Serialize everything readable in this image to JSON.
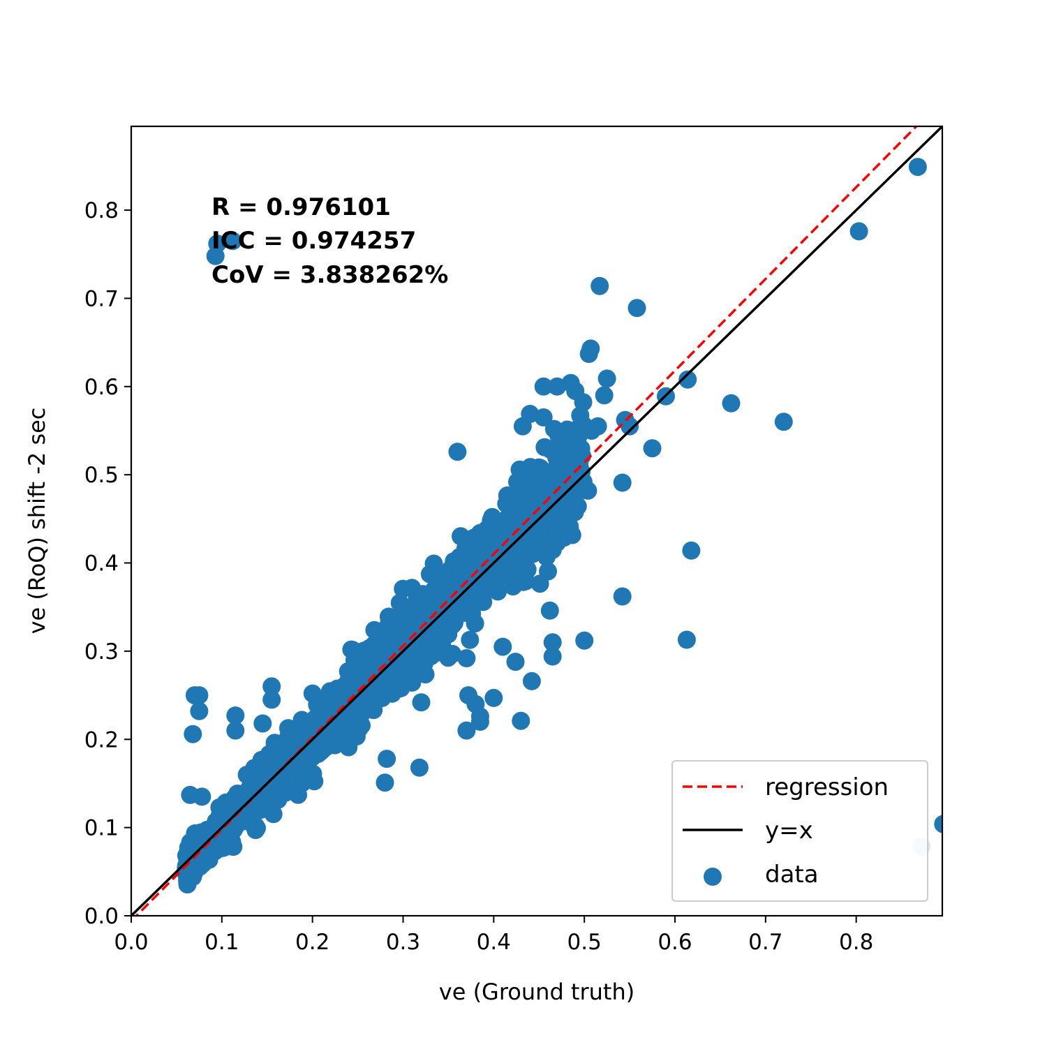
{
  "chart_data": {
    "type": "scatter",
    "xlabel": "ve (Ground truth)",
    "ylabel": "ve (RoQ) shift -2 sec",
    "xlim": [
      0,
      0.895
    ],
    "ylim": [
      0,
      0.895
    ],
    "x_ticks": [
      "0.0",
      "0.1",
      "0.2",
      "0.3",
      "0.4",
      "0.5",
      "0.6",
      "0.7",
      "0.8"
    ],
    "y_ticks": [
      "0.0",
      "0.1",
      "0.2",
      "0.3",
      "0.4",
      "0.5",
      "0.6",
      "0.7",
      "0.8"
    ],
    "grid": false,
    "annotations": [
      "R = 0.976101",
      "ICC = 0.974257",
      "CoV = 3.838262%"
    ],
    "legend": {
      "placement": "lower-right",
      "entries": [
        "regression",
        "y=x",
        "data"
      ]
    },
    "regression": {
      "slope": 1.04,
      "intercept": -0.006,
      "color": "#ff0000",
      "style": "dashed"
    },
    "identity_line": {
      "slope": 1,
      "intercept": 0,
      "color": "#000000"
    },
    "series": [
      {
        "name": "data",
        "color": "#1f77b4",
        "cluster": {
          "count": 1400,
          "x_range": [
            0.06,
            0.5
          ],
          "relation": "y ≈ 1.04x - 0.006 with spread increasing with x"
        },
        "points": [
          [
            0.07,
            0.25
          ],
          [
            0.075,
            0.25
          ],
          [
            0.075,
            0.232
          ],
          [
            0.068,
            0.206
          ],
          [
            0.065,
            0.137
          ],
          [
            0.078,
            0.135
          ],
          [
            0.115,
            0.227
          ],
          [
            0.115,
            0.21
          ],
          [
            0.145,
            0.218
          ],
          [
            0.155,
            0.26
          ],
          [
            0.155,
            0.245
          ],
          [
            0.095,
            0.762
          ],
          [
            0.112,
            0.765
          ],
          [
            0.093,
            0.748
          ],
          [
            0.517,
            0.714
          ],
          [
            0.558,
            0.689
          ],
          [
            0.507,
            0.643
          ],
          [
            0.505,
            0.637
          ],
          [
            0.525,
            0.609
          ],
          [
            0.522,
            0.59
          ],
          [
            0.455,
            0.6
          ],
          [
            0.47,
            0.6
          ],
          [
            0.485,
            0.604
          ],
          [
            0.49,
            0.595
          ],
          [
            0.44,
            0.569
          ],
          [
            0.432,
            0.555
          ],
          [
            0.455,
            0.565
          ],
          [
            0.36,
            0.526
          ],
          [
            0.545,
            0.562
          ],
          [
            0.55,
            0.555
          ],
          [
            0.515,
            0.555
          ],
          [
            0.508,
            0.55
          ],
          [
            0.575,
            0.53
          ],
          [
            0.59,
            0.589
          ],
          [
            0.614,
            0.608
          ],
          [
            0.662,
            0.581
          ],
          [
            0.72,
            0.56
          ],
          [
            0.868,
            0.849
          ],
          [
            0.803,
            0.776
          ],
          [
            0.542,
            0.491
          ],
          [
            0.504,
            0.482
          ],
          [
            0.618,
            0.414
          ],
          [
            0.542,
            0.362
          ],
          [
            0.5,
            0.312
          ],
          [
            0.462,
            0.346
          ],
          [
            0.465,
            0.31
          ],
          [
            0.465,
            0.294
          ],
          [
            0.613,
            0.313
          ],
          [
            0.41,
            0.305
          ],
          [
            0.424,
            0.288
          ],
          [
            0.442,
            0.266
          ],
          [
            0.37,
            0.292
          ],
          [
            0.372,
            0.25
          ],
          [
            0.4,
            0.247
          ],
          [
            0.38,
            0.24
          ],
          [
            0.385,
            0.226
          ],
          [
            0.385,
            0.22
          ],
          [
            0.37,
            0.21
          ],
          [
            0.43,
            0.221
          ],
          [
            0.32,
            0.242
          ],
          [
            0.318,
            0.168
          ],
          [
            0.282,
            0.178
          ],
          [
            0.28,
            0.151
          ],
          [
            0.896,
            0.104
          ],
          [
            0.872,
            0.079
          ]
        ]
      }
    ]
  }
}
